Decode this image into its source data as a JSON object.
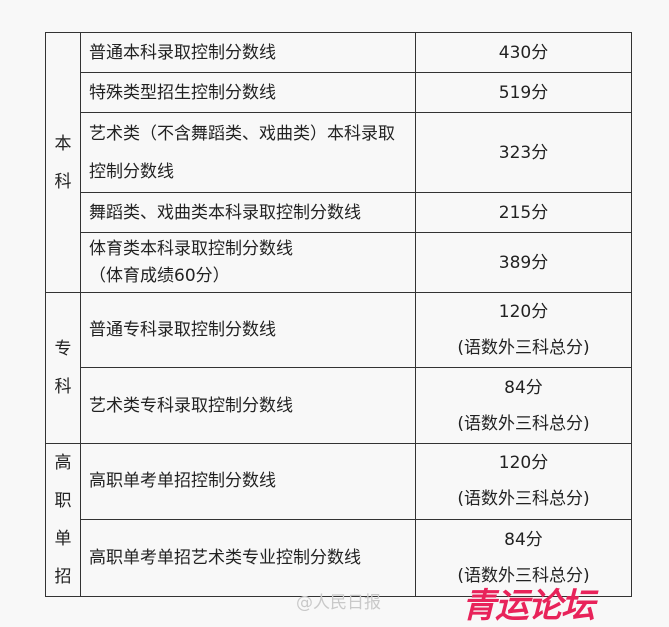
{
  "sections": [
    {
      "label": "本\n科",
      "rows": [
        {
          "name": "普通本科录取控制分数线",
          "score": "430分",
          "note": ""
        },
        {
          "name": "特殊类型招生控制分数线",
          "score": "519分",
          "note": ""
        },
        {
          "name": "艺术类（不含舞蹈类、戏曲类）本科录取控制分数线",
          "score": "323分",
          "note": ""
        },
        {
          "name": "舞蹈类、戏曲类本科录取控制分数线",
          "score": "215分",
          "note": ""
        },
        {
          "name": "体育类本科录取控制分数线",
          "name_note": "（体育成绩60分）",
          "score": "389分",
          "note": ""
        }
      ]
    },
    {
      "label": "专\n科",
      "rows": [
        {
          "name": "普通专科录取控制分数线",
          "score": "120分",
          "note": "(语数外三科总分)"
        },
        {
          "name": "艺术类专科录取控制分数线",
          "score": "84分",
          "note": "(语数外三科总分)"
        }
      ]
    },
    {
      "label": "高\n职\n单\n招",
      "rows": [
        {
          "name": "高职单考单招控制分数线",
          "score": "120分",
          "note": "(语数外三科总分)"
        },
        {
          "name": "高职单考单招艺术类专业控制分数线",
          "score": "84分",
          "note": "(语数外三科总分)"
        }
      ]
    }
  ],
  "watermark": {
    "source": "@人民日报",
    "logo": "青运论坛",
    "logo_color": "#e8235a"
  }
}
